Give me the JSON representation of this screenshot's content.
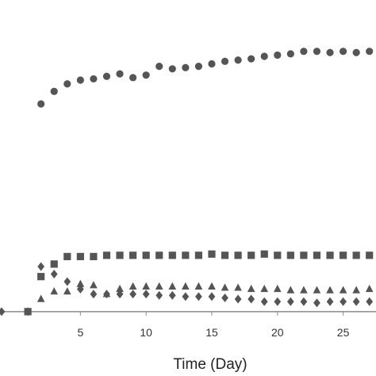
{
  "chart_data": {
    "type": "scatter",
    "title": "",
    "xlabel": "Time (Day)",
    "ylabel": "",
    "xlim": [
      -1,
      27.5
    ],
    "ylim": [
      -1,
      115
    ],
    "xticks": [
      5,
      10,
      15,
      20,
      25
    ],
    "grid": false,
    "legend": "none",
    "series": [
      {
        "marker": "circle",
        "color": "#555555",
        "points": [
          [
            2,
            83
          ],
          [
            3,
            88
          ],
          [
            4,
            91
          ],
          [
            5,
            92.5
          ],
          [
            6,
            93
          ],
          [
            7,
            94
          ],
          [
            8,
            95
          ],
          [
            9,
            93.5
          ],
          [
            10,
            94.5
          ],
          [
            11,
            98
          ],
          [
            12,
            97
          ],
          [
            13,
            97.5
          ],
          [
            14,
            98
          ],
          [
            15,
            99
          ],
          [
            16,
            100
          ],
          [
            17,
            100.5
          ],
          [
            18,
            101
          ],
          [
            19,
            102
          ],
          [
            20,
            102.5
          ],
          [
            21,
            103
          ],
          [
            22,
            104
          ],
          [
            23,
            104
          ],
          [
            24,
            103.5
          ],
          [
            25,
            104
          ],
          [
            26,
            103.5
          ],
          [
            27,
            104
          ]
        ]
      },
      {
        "marker": "square",
        "color": "#555555",
        "points": [
          [
            1,
            0
          ],
          [
            2,
            14
          ],
          [
            3,
            19
          ],
          [
            4,
            22
          ],
          [
            5,
            22
          ],
          [
            6,
            22
          ],
          [
            7,
            22.5
          ],
          [
            8,
            22.5
          ],
          [
            9,
            22.5
          ],
          [
            10,
            22.5
          ],
          [
            11,
            22.5
          ],
          [
            12,
            22.5
          ],
          [
            13,
            22.5
          ],
          [
            14,
            22.5
          ],
          [
            15,
            23
          ],
          [
            16,
            22.5
          ],
          [
            17,
            22.5
          ],
          [
            18,
            22.5
          ],
          [
            19,
            23
          ],
          [
            20,
            22.5
          ],
          [
            21,
            22.5
          ],
          [
            22,
            22.5
          ],
          [
            23,
            22.5
          ],
          [
            24,
            22.5
          ],
          [
            25,
            22.5
          ],
          [
            26,
            22.5
          ],
          [
            27,
            22.5
          ]
        ]
      },
      {
        "marker": "triangle",
        "color": "#555555",
        "points": [
          [
            2,
            5
          ],
          [
            3,
            8
          ],
          [
            4,
            8
          ],
          [
            5,
            11
          ],
          [
            6,
            10.5
          ],
          [
            7,
            7
          ],
          [
            8,
            9
          ],
          [
            9,
            10
          ],
          [
            10,
            10
          ],
          [
            11,
            10
          ],
          [
            12,
            10
          ],
          [
            13,
            10
          ],
          [
            14,
            10
          ],
          [
            15,
            10
          ],
          [
            16,
            9.5
          ],
          [
            17,
            9.5
          ],
          [
            18,
            9
          ],
          [
            19,
            9
          ],
          [
            20,
            9
          ],
          [
            21,
            8.5
          ],
          [
            22,
            8.5
          ],
          [
            23,
            8.5
          ],
          [
            24,
            8.5
          ],
          [
            25,
            8.5
          ],
          [
            26,
            8.5
          ],
          [
            27,
            9
          ]
        ]
      },
      {
        "marker": "diamond",
        "color": "#555555",
        "points": [
          [
            -1,
            0
          ],
          [
            1,
            0
          ],
          [
            2,
            18
          ],
          [
            3,
            15
          ],
          [
            4,
            12
          ],
          [
            5,
            9
          ],
          [
            6,
            7
          ],
          [
            7,
            7
          ],
          [
            8,
            7
          ],
          [
            9,
            7
          ],
          [
            10,
            7
          ],
          [
            11,
            6.5
          ],
          [
            12,
            6.5
          ],
          [
            13,
            6
          ],
          [
            14,
            6
          ],
          [
            15,
            6
          ],
          [
            16,
            5.5
          ],
          [
            17,
            5
          ],
          [
            18,
            5
          ],
          [
            19,
            4
          ],
          [
            20,
            4
          ],
          [
            21,
            4
          ],
          [
            22,
            4
          ],
          [
            23,
            3.5
          ],
          [
            24,
            4
          ],
          [
            25,
            4
          ],
          [
            26,
            4
          ],
          [
            27,
            4
          ]
        ]
      }
    ]
  }
}
